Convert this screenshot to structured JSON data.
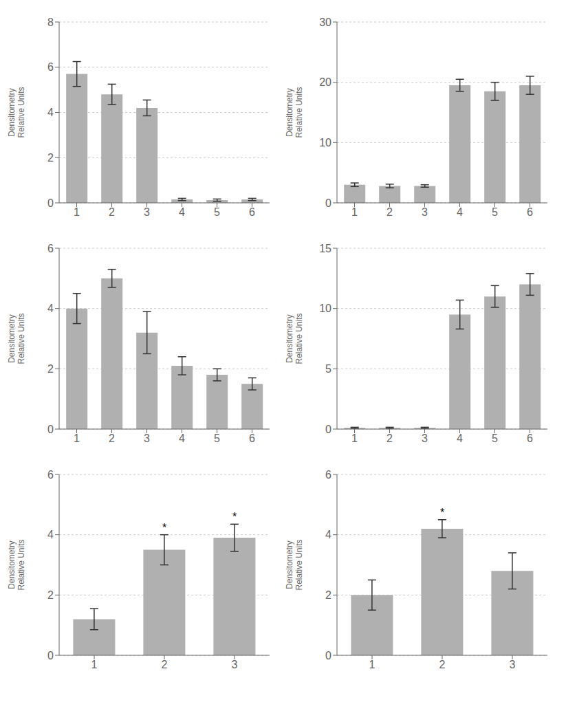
{
  "chart_data": [
    {
      "type": "bar",
      "categories": [
        "1",
        "2",
        "3",
        "4",
        "5",
        "6"
      ],
      "values": [
        5.7,
        4.8,
        4.2,
        0.15,
        0.12,
        0.15
      ],
      "errors": [
        0.55,
        0.45,
        0.35,
        0.05,
        0.05,
        0.05
      ],
      "ylim": [
        0,
        8
      ],
      "yticks": [
        0,
        2,
        4,
        6,
        8
      ],
      "ylabel": "Densitometry\nRelative Units",
      "color": "#b0b0b0",
      "grid": true
    },
    {
      "type": "bar",
      "categories": [
        "1",
        "2",
        "3",
        "4",
        "5",
        "6"
      ],
      "values": [
        3.0,
        2.8,
        2.8,
        19.5,
        18.5,
        19.5
      ],
      "errors": [
        0.3,
        0.3,
        0.2,
        1.0,
        1.5,
        1.5
      ],
      "ylim": [
        0,
        30
      ],
      "yticks": [
        0,
        10,
        20,
        30
      ],
      "ylabel": "Densitometry\nRelative Units",
      "color": "#b0b0b0",
      "grid": true
    },
    {
      "type": "bar",
      "categories": [
        "1",
        "2",
        "3",
        "4",
        "5",
        "6"
      ],
      "values": [
        4.0,
        5.0,
        3.2,
        2.1,
        1.8,
        1.5
      ],
      "errors": [
        0.5,
        0.3,
        0.7,
        0.3,
        0.2,
        0.2
      ],
      "ylim": [
        0,
        6
      ],
      "yticks": [
        0,
        2,
        4,
        6
      ],
      "ylabel": "Densitometry\nRelative Units",
      "color": "#b0b0b0",
      "grid": true
    },
    {
      "type": "bar",
      "categories": [
        "1",
        "2",
        "3",
        "4",
        "5",
        "6"
      ],
      "values": [
        0.1,
        0.1,
        0.1,
        9.5,
        11.0,
        12.0
      ],
      "errors": [
        0.05,
        0.05,
        0.05,
        1.2,
        0.9,
        0.9
      ],
      "ylim": [
        0,
        15
      ],
      "yticks": [
        0,
        5,
        10,
        15
      ],
      "ylabel": "Densitometry\nRelative Units",
      "color": "#b0b0b0",
      "grid": true
    },
    {
      "type": "bar",
      "categories": [
        "1",
        "2",
        "3"
      ],
      "values": [
        1.2,
        3.5,
        3.9
      ],
      "errors": [
        0.35,
        0.5,
        0.45
      ],
      "ylim": [
        0,
        6
      ],
      "yticks": [
        0,
        2,
        4,
        6
      ],
      "ylabel": "Densitometry\nRelative Units",
      "color": "#b0b0b0",
      "grid": true,
      "annotations": [
        {
          "text": "*",
          "category": "2"
        },
        {
          "text": "*",
          "category": "3"
        }
      ]
    },
    {
      "type": "bar",
      "categories": [
        "1",
        "2",
        "3"
      ],
      "values": [
        2.0,
        4.2,
        2.8
      ],
      "errors": [
        0.5,
        0.3,
        0.6
      ],
      "ylim": [
        0,
        6
      ],
      "yticks": [
        0,
        2,
        4,
        6
      ],
      "ylabel": "Densitometry\nRelative Units",
      "color": "#b0b0b0",
      "grid": true,
      "annotations": [
        {
          "text": "*",
          "category": "2"
        }
      ]
    }
  ]
}
